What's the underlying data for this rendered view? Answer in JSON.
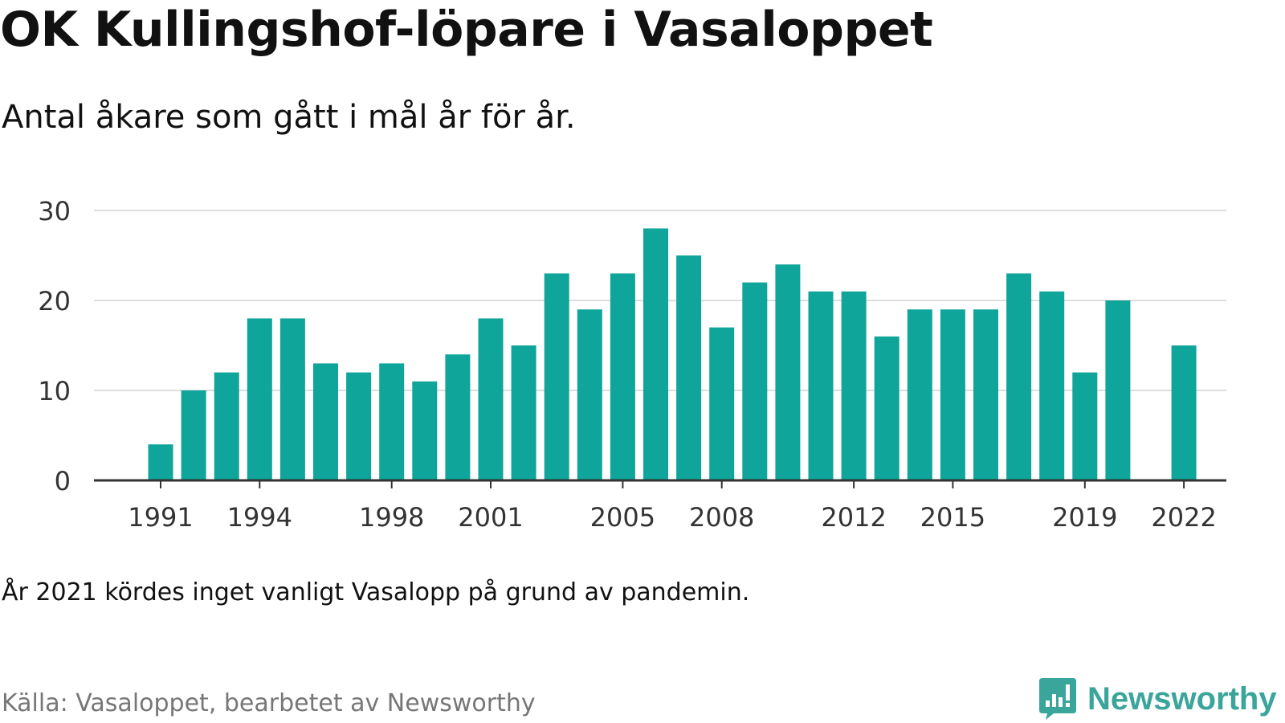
{
  "title": "OK Kullingshof-löpare i Vasaloppet",
  "subtitle": "Antal åkare som gått i mål år för år.",
  "note": "År 2021 kördes inget vanligt Vasalopp på grund av pandemin.",
  "source": "Källa: Vasaloppet, bearbetet av Newsworthy",
  "logo": {
    "text": "Newsworthy",
    "icon": "newsworthy-logo-icon",
    "color": "#3aa59a"
  },
  "colors": {
    "bar": "#0fa59a",
    "grid": "#dddddd",
    "axis": "#333333",
    "tick_text": "#333333"
  },
  "chart_data": {
    "type": "bar",
    "x": [
      1991,
      1992,
      1993,
      1994,
      1995,
      1996,
      1997,
      1998,
      1999,
      2000,
      2001,
      2002,
      2003,
      2004,
      2005,
      2006,
      2007,
      2008,
      2009,
      2010,
      2011,
      2012,
      2013,
      2014,
      2015,
      2016,
      2017,
      2018,
      2019,
      2020,
      2021,
      2022
    ],
    "values": [
      4,
      10,
      12,
      18,
      18,
      13,
      12,
      13,
      11,
      14,
      18,
      15,
      23,
      19,
      23,
      28,
      25,
      17,
      22,
      24,
      21,
      21,
      16,
      19,
      19,
      19,
      23,
      21,
      12,
      20,
      null,
      15
    ],
    "xticks": [
      "1991",
      "1994",
      "1998",
      "2001",
      "2005",
      "2008",
      "2012",
      "2015",
      "2019",
      "2022"
    ],
    "yticks": [
      "0",
      "10",
      "20",
      "30"
    ],
    "ylim": [
      0,
      30
    ],
    "xlabel": "",
    "ylabel": "",
    "grid": true
  }
}
